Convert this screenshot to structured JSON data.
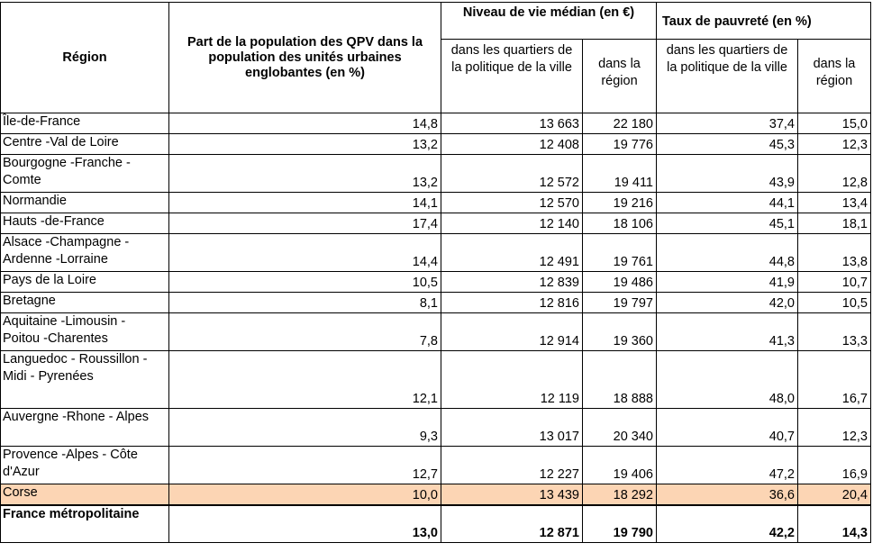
{
  "headers": {
    "region": "Région",
    "part": "Part de la population des QPV dans la population des unités urbaines englobantes (en %)",
    "niveau": "Niveau de vie médian (en €)",
    "taux": "Taux de pauvreté (en %)",
    "sub_qpv": "dans les quartiers de la politique de la ville",
    "sub_region": "dans la région"
  },
  "rows": [
    {
      "region": "Île-de-France",
      "part": "14,8",
      "nv_qpv": "13 663",
      "nv_region": "22 180",
      "tp_qpv": "37,4",
      "tp_region": "15,0"
    },
    {
      "region": "Centre -Val de Loire",
      "part": "13,2",
      "nv_qpv": "12 408",
      "nv_region": "19 776",
      "tp_qpv": "45,3",
      "tp_region": "12,3"
    },
    {
      "region": "Bourgogne -Franche - Comte",
      "part": "13,2",
      "nv_qpv": "12 572",
      "nv_region": "19 411",
      "tp_qpv": "43,9",
      "tp_region": "12,8"
    },
    {
      "region": "Normandie",
      "part": "14,1",
      "nv_qpv": "12 570",
      "nv_region": "19 216",
      "tp_qpv": "44,1",
      "tp_region": "13,4"
    },
    {
      "region": "Hauts -de-France",
      "part": "17,4",
      "nv_qpv": "12 140",
      "nv_region": "18 106",
      "tp_qpv": "45,1",
      "tp_region": "18,1"
    },
    {
      "region": "Alsace -Champagne - Ardenne -Lorraine",
      "part": "14,4",
      "nv_qpv": "12 491",
      "nv_region": "19 761",
      "tp_qpv": "44,8",
      "tp_region": "13,8"
    },
    {
      "region": "Pays de la Loire",
      "part": "10,5",
      "nv_qpv": "12 839",
      "nv_region": "19 486",
      "tp_qpv": "41,9",
      "tp_region": "10,7"
    },
    {
      "region": "Bretagne",
      "part": "8,1",
      "nv_qpv": "12 816",
      "nv_region": "19 797",
      "tp_qpv": "42,0",
      "tp_region": "10,5"
    },
    {
      "region": "Aquitaine -Limousin - Poitou -Charentes",
      "part": "7,8",
      "nv_qpv": "12 914",
      "nv_region": "19 360",
      "tp_qpv": "41,3",
      "tp_region": "13,3"
    },
    {
      "region": "Languedoc - Roussillon -Midi - Pyrenées",
      "part": "12,1",
      "nv_qpv": "12 119",
      "nv_region": "18 888",
      "tp_qpv": "48,0",
      "tp_region": "16,7"
    },
    {
      "region": "Auvergne -Rhone - Alpes",
      "part": "9,3",
      "nv_qpv": "13 017",
      "nv_region": "20 340",
      "tp_qpv": "40,7",
      "tp_region": "12,3"
    },
    {
      "region": "Provence -Alpes - Côte d'Azur",
      "part": "12,7",
      "nv_qpv": "12 227",
      "nv_region": "19 406",
      "tp_qpv": "47,2",
      "tp_region": "16,9"
    },
    {
      "region": "Corse",
      "part": "10,0",
      "nv_qpv": "13 439",
      "nv_region": "18 292",
      "tp_qpv": "36,6",
      "tp_region": "20,4"
    }
  ],
  "total": {
    "region": "France métropolitaine",
    "part": "13,0",
    "nv_qpv": "12 871",
    "nv_region": "19 790",
    "tp_qpv": "42,2",
    "tp_region": "14,3"
  },
  "highlight_color": "#fcd5b4"
}
